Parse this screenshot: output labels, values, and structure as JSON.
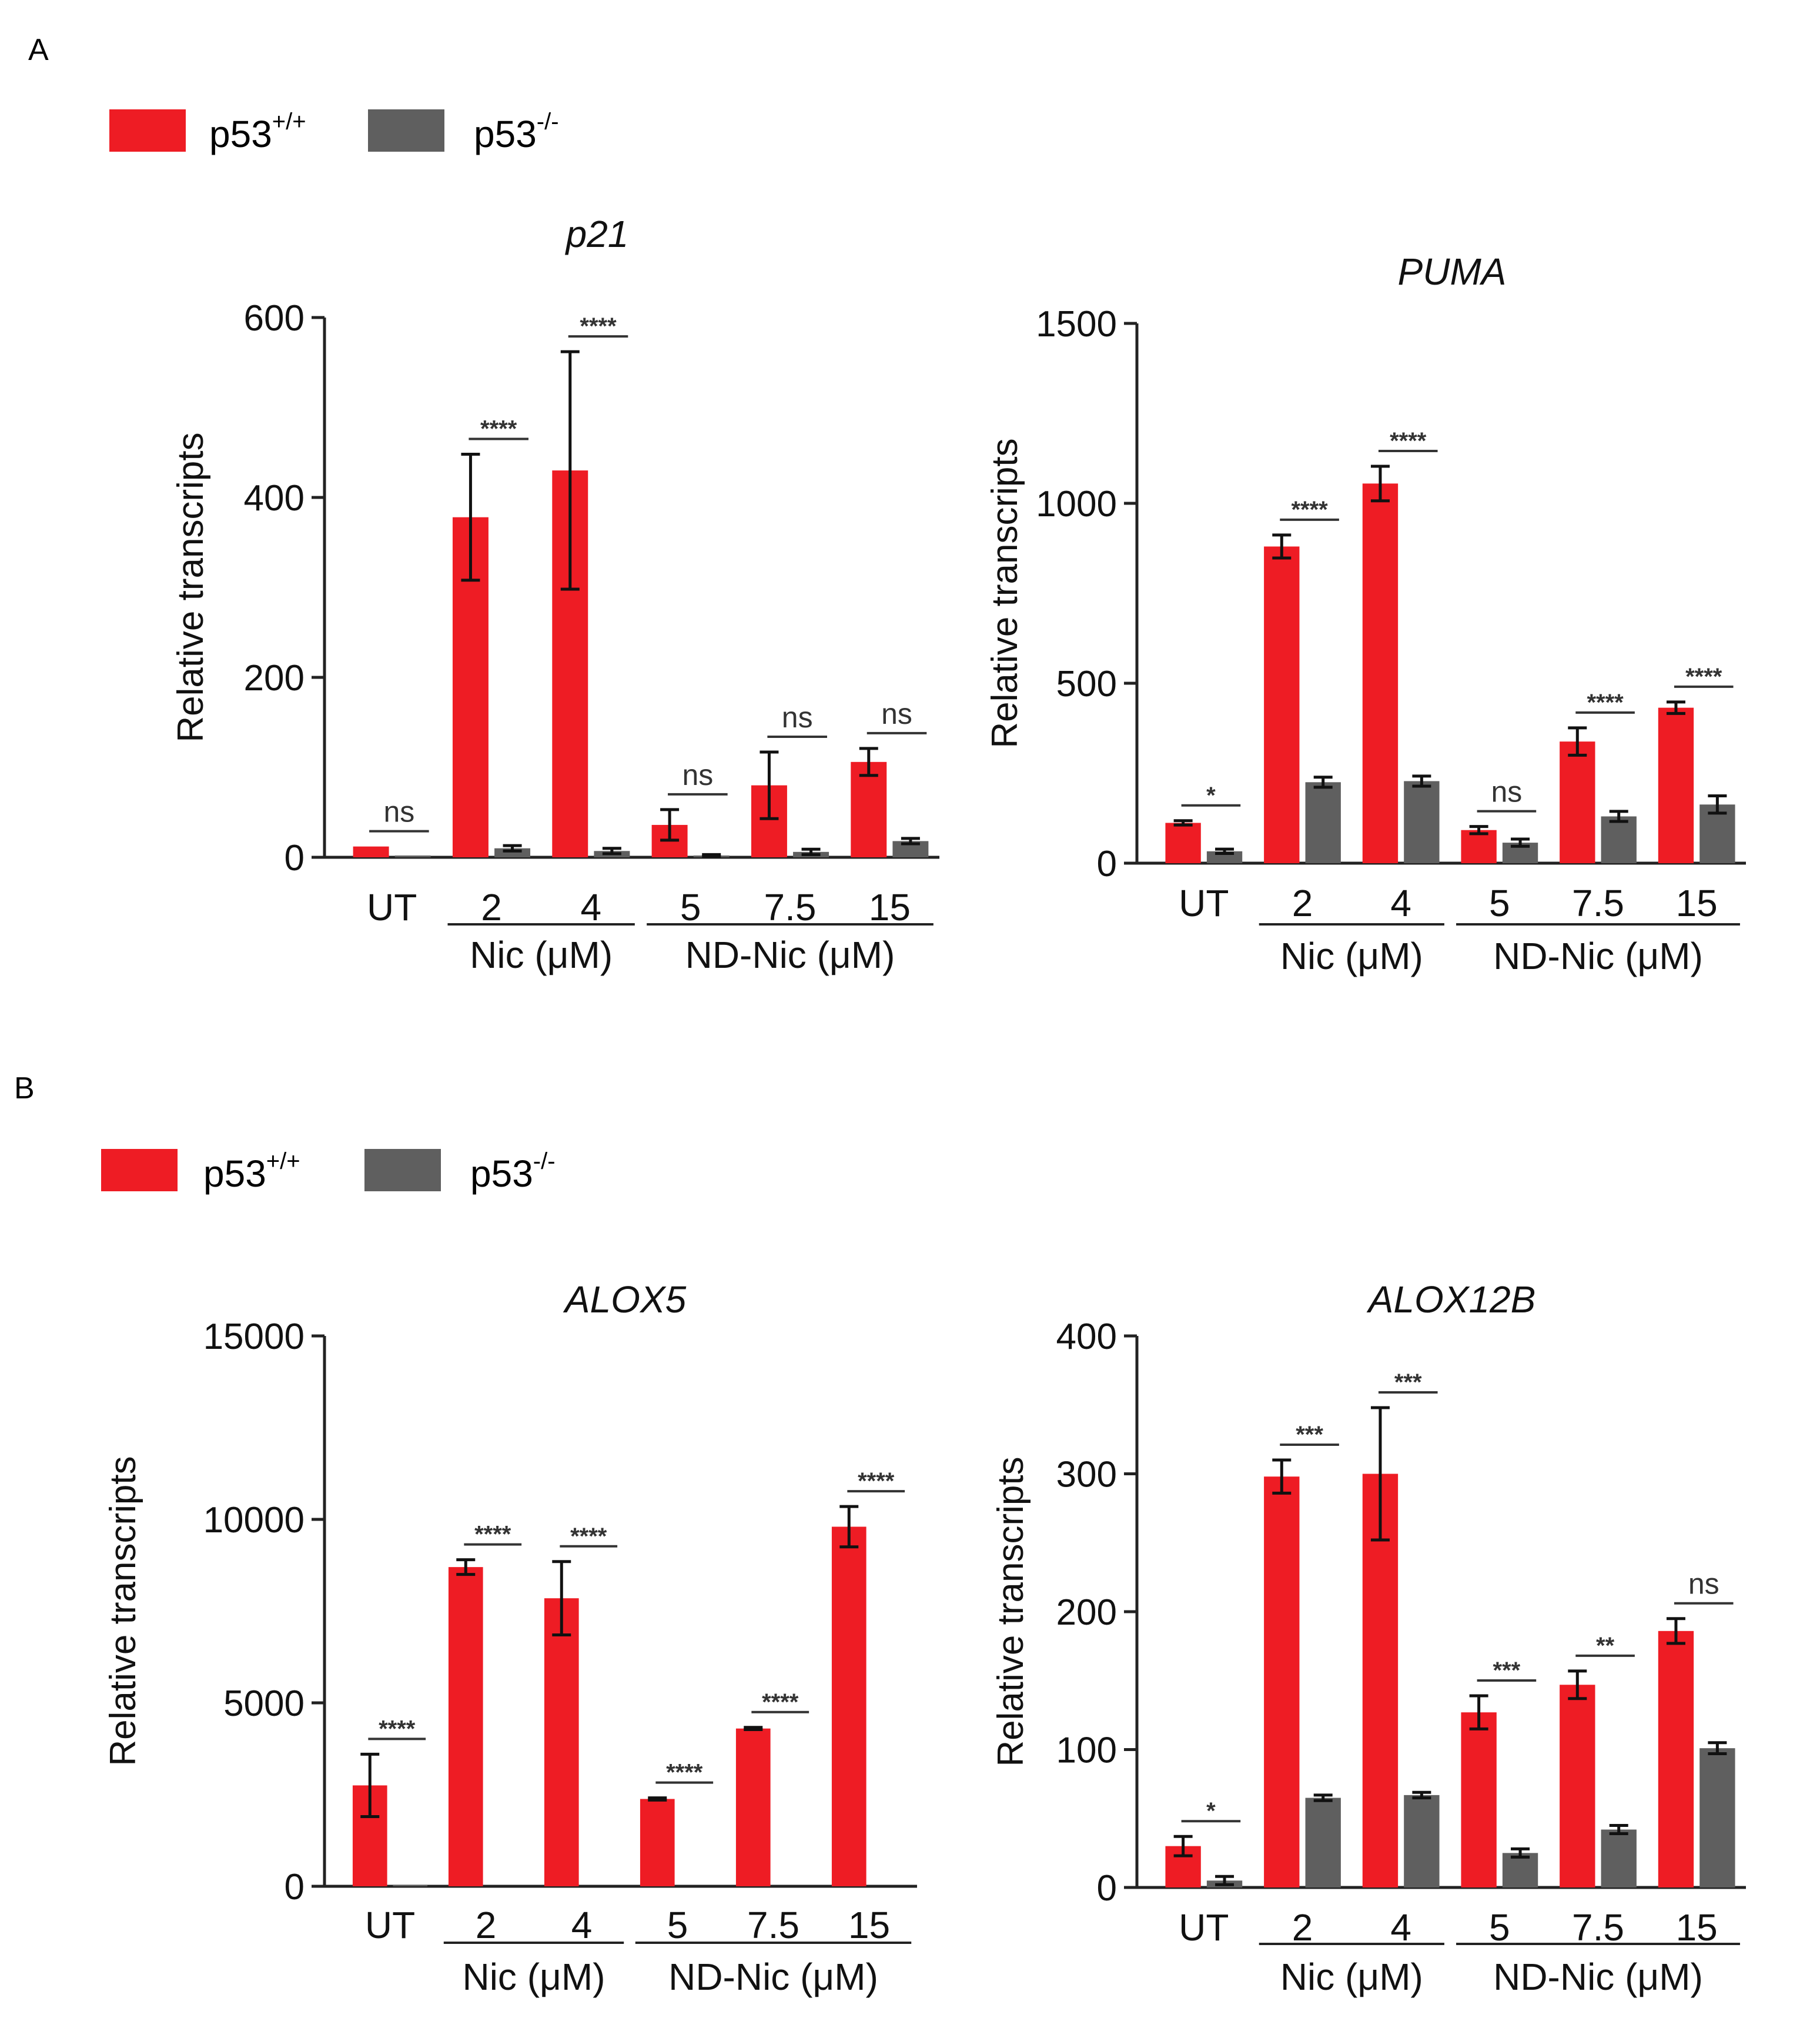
{
  "panels": [
    {
      "label": "A",
      "legend": [
        {
          "base": "p53",
          "sup": "+/+",
          "color": "#ee1c24"
        },
        {
          "base": "p53",
          "sup": "-/-",
          "color": "#5f5f5f"
        }
      ]
    },
    {
      "label": "B",
      "legend": [
        {
          "base": "p53",
          "sup": "+/+",
          "color": "#ee1c24"
        },
        {
          "base": "p53",
          "sup": "-/-",
          "color": "#5f5f5f"
        }
      ]
    }
  ],
  "chart_data": [
    {
      "type": "bar",
      "title": "p21",
      "ylabel": "Relative transcripts",
      "ylim": [
        0,
        600
      ],
      "yticks": [
        0,
        200,
        400,
        600
      ],
      "categories": [
        "UT",
        "2",
        "4",
        "5",
        "7.5",
        "15"
      ],
      "groups": [
        {
          "label": "Nic (μM)",
          "from": 1,
          "to": 2
        },
        {
          "label": "ND-Nic (μM)",
          "from": 3,
          "to": 5
        }
      ],
      "series": [
        {
          "name": "p53+/+",
          "color": "#ee1c24",
          "values": [
            12,
            378,
            430,
            36,
            80,
            106
          ],
          "errors": [
            0,
            70,
            132,
            17,
            37,
            15
          ]
        },
        {
          "name": "p53-/-",
          "color": "#5f5f5f",
          "values": [
            2,
            10,
            7,
            2,
            6,
            18
          ],
          "errors": [
            0,
            3,
            3,
            1,
            3,
            3
          ]
        }
      ],
      "significance": [
        "ns",
        "****",
        "****",
        "ns",
        "ns",
        "ns"
      ]
    },
    {
      "type": "bar",
      "title": "PUMA",
      "ylabel": "Relative transcripts",
      "ylim": [
        0,
        1500
      ],
      "yticks": [
        0,
        500,
        1000,
        1500
      ],
      "categories": [
        "UT",
        "2",
        "4",
        "5",
        "7.5",
        "15"
      ],
      "groups": [
        {
          "label": "Nic (μM)",
          "from": 1,
          "to": 2
        },
        {
          "label": "ND-Nic (μM)",
          "from": 3,
          "to": 5
        }
      ],
      "series": [
        {
          "name": "p53+/+",
          "color": "#ee1c24",
          "values": [
            112,
            880,
            1055,
            92,
            338,
            432
          ],
          "errors": [
            6,
            32,
            48,
            10,
            38,
            16
          ]
        },
        {
          "name": "p53-/-",
          "color": "#5f5f5f",
          "values": [
            33,
            225,
            228,
            57,
            130,
            163
          ],
          "errors": [
            6,
            14,
            14,
            10,
            14,
            24
          ]
        }
      ],
      "significance": [
        "*",
        "****",
        "****",
        "ns",
        "****",
        "****"
      ]
    },
    {
      "type": "bar",
      "title": "ALOX5",
      "ylabel": "Relative transcripts",
      "ylim": [
        0,
        15000
      ],
      "yticks": [
        0,
        5000,
        10000,
        15000
      ],
      "categories": [
        "UT",
        "2",
        "4",
        "5",
        "7.5",
        "15"
      ],
      "groups": [
        {
          "label": "Nic (μM)",
          "from": 1,
          "to": 2
        },
        {
          "label": "ND-Nic (μM)",
          "from": 3,
          "to": 5
        }
      ],
      "series": [
        {
          "name": "p53+/+",
          "color": "#ee1c24",
          "values": [
            2750,
            8700,
            7850,
            2380,
            4300,
            9800
          ],
          "errors": [
            850,
            200,
            1000,
            30,
            30,
            550
          ]
        },
        {
          "name": "p53-/-",
          "color": "#5f5f5f",
          "values": [
            30,
            0,
            0,
            0,
            0,
            0
          ],
          "errors": [
            0,
            0,
            0,
            0,
            0,
            0
          ]
        }
      ],
      "significance": [
        "****",
        "****",
        "****",
        "****",
        "****",
        "****"
      ]
    },
    {
      "type": "bar",
      "title": "ALOX12B",
      "ylabel": "Relative transcripts",
      "ylim": [
        0,
        400
      ],
      "yticks": [
        0,
        100,
        200,
        300,
        400
      ],
      "categories": [
        "UT",
        "2",
        "4",
        "5",
        "7.5",
        "15"
      ],
      "groups": [
        {
          "label": "Nic (μM)",
          "from": 1,
          "to": 2
        },
        {
          "label": "ND-Nic (μM)",
          "from": 3,
          "to": 5
        }
      ],
      "series": [
        {
          "name": "p53+/+",
          "color": "#ee1c24",
          "values": [
            30,
            298,
            300,
            127,
            147,
            186
          ],
          "errors": [
            7,
            12,
            48,
            12,
            10,
            9
          ]
        },
        {
          "name": "p53-/-",
          "color": "#5f5f5f",
          "values": [
            5,
            65,
            67,
            25,
            42,
            101
          ],
          "errors": [
            3,
            2,
            2,
            3,
            3,
            4
          ]
        }
      ],
      "significance": [
        "*",
        "***",
        "***",
        "***",
        "**",
        "ns"
      ]
    }
  ]
}
